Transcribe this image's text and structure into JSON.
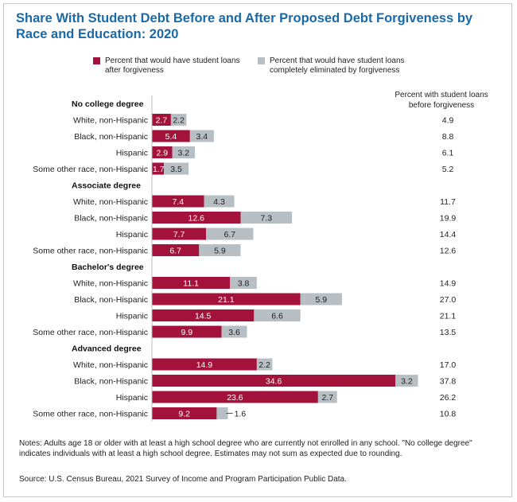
{
  "title": "Share With Student Debt Before and After Proposed Debt Forgiveness by Race and Education: 2020",
  "legend": {
    "after_label": "Percent that would have student loans after forgiveness",
    "eliminated_label": "Percent that would have student loans completely eliminated by forgiveness"
  },
  "right_column_header": "Percent with student loans before forgiveness",
  "notes": "Notes: Adults age 18 or older with at least a high school degree who are currently not enrolled in any school. \"No college degree\" indicates individuals with at least a high school degree. Estimates may not sum as expected due to rounding.",
  "source": "Source: U.S. Census Bureau, 2021 Survey of Income and Program Participation Public Data.",
  "colors": {
    "after": "#a3123a",
    "eliminated": "#b7bec4",
    "title": "#1a6aa8"
  },
  "chart_data": {
    "type": "bar",
    "orientation": "horizontal",
    "stacked": true,
    "series_names": [
      "Percent that would have student loans after forgiveness",
      "Percent that would have student loans completely eliminated by forgiveness"
    ],
    "groups": [
      {
        "name": "No college degree",
        "rows": [
          {
            "label": "White, non-Hispanic",
            "after": 2.7,
            "eliminated": 2.2,
            "before": "4.9"
          },
          {
            "label": "Black, non-Hispanic",
            "after": 5.4,
            "eliminated": 3.4,
            "before": "8.8"
          },
          {
            "label": "Hispanic",
            "after": 2.9,
            "eliminated": 3.2,
            "before": "6.1"
          },
          {
            "label": "Some other race, non-Hispanic",
            "after": 1.7,
            "eliminated": 3.5,
            "before": "5.2"
          }
        ]
      },
      {
        "name": "Associate degree",
        "rows": [
          {
            "label": "White, non-Hispanic",
            "after": 7.4,
            "eliminated": 4.3,
            "before": "11.7"
          },
          {
            "label": "Black, non-Hispanic",
            "after": 12.6,
            "eliminated": 7.3,
            "before": "19.9"
          },
          {
            "label": "Hispanic",
            "after": 7.7,
            "eliminated": 6.7,
            "before": "14.4"
          },
          {
            "label": "Some other race, non-Hispanic",
            "after": 6.7,
            "eliminated": 5.9,
            "before": "12.6"
          }
        ]
      },
      {
        "name": "Bachelor's degree",
        "rows": [
          {
            "label": "White, non-Hispanic",
            "after": 11.1,
            "eliminated": 3.8,
            "before": "14.9"
          },
          {
            "label": "Black, non-Hispanic",
            "after": 21.1,
            "eliminated": 5.9,
            "before": "27.0"
          },
          {
            "label": "Hispanic",
            "after": 14.5,
            "eliminated": 6.6,
            "before": "21.1"
          },
          {
            "label": "Some other race, non-Hispanic",
            "after": 9.9,
            "eliminated": 3.6,
            "before": "13.5"
          }
        ]
      },
      {
        "name": "Advanced degree",
        "rows": [
          {
            "label": "White, non-Hispanic",
            "after": 14.9,
            "eliminated": 2.2,
            "before": "17.0"
          },
          {
            "label": "Black, non-Hispanic",
            "after": 34.6,
            "eliminated": 3.2,
            "before": "37.8"
          },
          {
            "label": "Hispanic",
            "after": 23.6,
            "eliminated": 2.7,
            "before": "26.2"
          },
          {
            "label": "Some other race, non-Hispanic",
            "after": 9.2,
            "eliminated": 1.6,
            "before": "10.8"
          }
        ]
      }
    ]
  }
}
